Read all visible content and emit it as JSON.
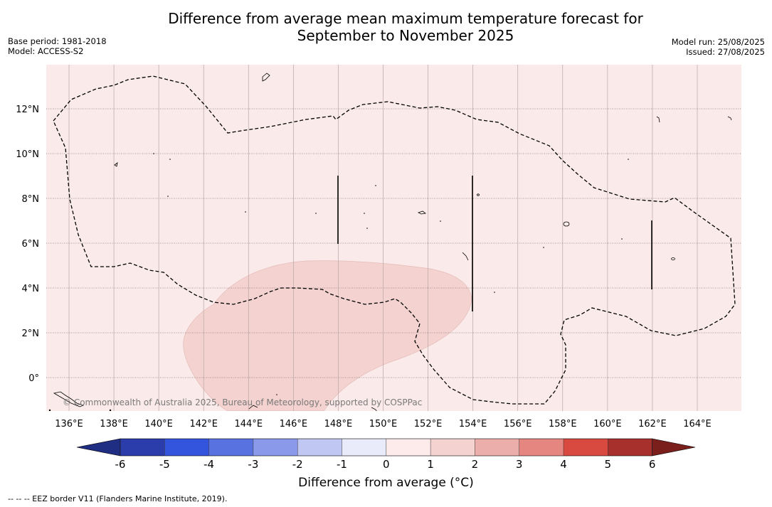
{
  "title_line1": "Difference from average mean maximum temperature forecast for",
  "title_line2": "September to November 2025",
  "base_period": "Base period: 1981-2018",
  "model": "Model: ACCESS-S2",
  "model_run": "Model run: 25/08/2025",
  "issued": "Issued: 27/08/2025",
  "copyright": "© Commonwealth of Australia 2025, Bureau of Meteorology, supported by COSPPac",
  "colorbar_label": "Difference from average (°C)",
  "footnote": "-- -- -- EEZ border V11 (Flanders Marine Institute, 2019).",
  "map": {
    "lon_ticks": [
      "136°E",
      "138°E",
      "140°E",
      "142°E",
      "144°E",
      "146°E",
      "148°E",
      "150°E",
      "152°E",
      "154°E",
      "156°E",
      "158°E",
      "160°E",
      "162°E",
      "164°E"
    ],
    "lat_ticks": [
      "12°N",
      "10°N",
      "8°N",
      "6°N",
      "4°N",
      "2°N",
      "0°"
    ],
    "background_category": "0 to 1",
    "shaded_region_category": "1 to 2"
  },
  "colorbar": {
    "ticks": [
      "-6",
      "-5",
      "-4",
      "-3",
      "-2",
      "-1",
      "0",
      "1",
      "2",
      "3",
      "4",
      "5",
      "6"
    ],
    "colors": [
      "#1f2d83",
      "#2a3daa",
      "#3355dd",
      "#5872e0",
      "#8a99ea",
      "#c1c7f3",
      "#e9ebfb",
      "#fcebea",
      "#f3d2cf",
      "#ecaeaa",
      "#e68680",
      "#d84a40",
      "#a8302c",
      "#7a1f1c"
    ]
  }
}
